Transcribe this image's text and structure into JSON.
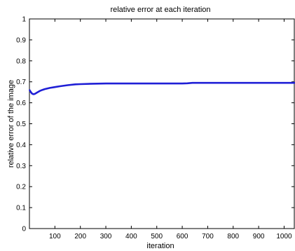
{
  "chart_data": {
    "type": "line",
    "title": "relative error at each iteration",
    "xlabel": "iteration",
    "ylabel": "relative error of the image",
    "xlim": [
      0,
      1040
    ],
    "ylim": [
      0,
      1
    ],
    "grid": false,
    "x_ticks": [
      100,
      200,
      300,
      400,
      500,
      600,
      700,
      800,
      900,
      1000
    ],
    "x_tick_labels": [
      "100",
      "200",
      "300",
      "400",
      "500",
      "600",
      "700",
      "800",
      "900",
      "1000"
    ],
    "y_ticks": [
      0,
      0.1,
      0.2,
      0.3,
      0.4,
      0.5,
      0.6,
      0.7,
      0.8,
      0.9,
      1
    ],
    "y_tick_labels": [
      "0",
      "0.1",
      "0.2",
      "0.3",
      "0.4",
      "0.5",
      "0.6",
      "0.7",
      "0.8",
      "0.9",
      "1"
    ],
    "line_color": "#1f1fd6",
    "series": [
      {
        "x": [
          1,
          5,
          10,
          15,
          20,
          25,
          30,
          40,
          50,
          60,
          80,
          100,
          120,
          150,
          180,
          200,
          250,
          300,
          400,
          500,
          600,
          620,
          640,
          700,
          800,
          900,
          1000,
          1040
        ],
        "values": [
          0.66,
          0.652,
          0.644,
          0.641,
          0.642,
          0.645,
          0.649,
          0.656,
          0.661,
          0.665,
          0.671,
          0.675,
          0.679,
          0.684,
          0.688,
          0.689,
          0.691,
          0.692,
          0.692,
          0.692,
          0.692,
          0.693,
          0.695,
          0.695,
          0.695,
          0.695,
          0.695,
          0.695
        ]
      }
    ]
  }
}
